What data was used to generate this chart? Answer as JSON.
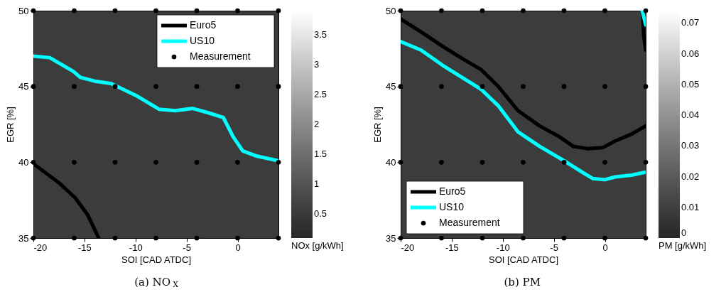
{
  "chart_data": [
    {
      "type": "line",
      "title": "(a) NO$_{X}$",
      "xlabel": "SOI [CAD ATDC]",
      "ylabel": "EGR [%]",
      "clabel": "NOx [g/kWh]",
      "xlim": [
        -20,
        4
      ],
      "ylim": [
        35,
        50
      ],
      "xticks": [
        -20,
        -15,
        -10,
        -5,
        0
      ],
      "yticks": [
        35,
        40,
        45,
        50
      ],
      "clim": [
        0.1,
        3.9
      ],
      "cticks": [
        0.5,
        1,
        1.5,
        2,
        2.5,
        3,
        3.5
      ],
      "legend": "top right",
      "grid": false,
      "series": [
        {
          "name": "Euro5",
          "type": "line",
          "color": "#000000",
          "x": [
            -20,
            -17.5,
            -15.9,
            -14.7,
            -13.6
          ],
          "values": [
            39.9,
            38.65,
            37.65,
            36.55,
            35.0
          ]
        },
        {
          "name": "US10",
          "type": "line",
          "color": "#00ffff",
          "x": [
            -20,
            -18.4,
            -16.1,
            -15.4,
            -14,
            -12.4,
            -9.8,
            -7.7,
            -6.1,
            -4.4,
            -2.8,
            -1.4,
            -0.45,
            0.5,
            1.9,
            4
          ],
          "values": [
            47.0,
            46.9,
            46.0,
            45.6,
            45.35,
            45.2,
            44.35,
            43.5,
            43.4,
            43.55,
            43.25,
            42.95,
            41.7,
            40.75,
            40.4,
            40.1
          ]
        },
        {
          "name": "Measurement",
          "type": "scatter",
          "color": "#000000",
          "marker": "circle",
          "x": [
            -20,
            -16,
            -12,
            -8,
            -4,
            0,
            4,
            -20,
            -16,
            -12,
            -8,
            -4,
            0,
            4,
            -20,
            -16,
            -12,
            -8,
            -4,
            0,
            4,
            -20,
            -16,
            -12,
            -8,
            -4,
            0,
            4
          ],
          "values": [
            50,
            50,
            50,
            50,
            50,
            50,
            50,
            45,
            45,
            45,
            45,
            45,
            45,
            45,
            40,
            40,
            40,
            40,
            40,
            40,
            40,
            35,
            35,
            35,
            35,
            35,
            35,
            35
          ]
        }
      ]
    },
    {
      "type": "line",
      "title": "(b) PM",
      "xlabel": "SOI [CAD ATDC]",
      "ylabel": "EGR [%]",
      "clabel": "PM [g/kWh]",
      "xlim": [
        -20,
        4
      ],
      "ylim": [
        35,
        50
      ],
      "xticks": [
        -20,
        -15,
        -10,
        -5,
        0
      ],
      "yticks": [
        35,
        40,
        45,
        50
      ],
      "clim": [
        0,
        0.074
      ],
      "cticks": [
        0,
        0.01,
        0.02,
        0.03,
        0.04,
        0.05,
        0.06,
        0.07
      ],
      "legend": "bottom left",
      "grid": false,
      "series": [
        {
          "name": "Euro5",
          "type": "line",
          "color": "#000000",
          "x": [
            -20,
            -18,
            -15.9,
            -14,
            -12.1,
            -10.4,
            -8.5,
            -6.4,
            -4.5,
            -3.1,
            -1.7,
            -0.2,
            1,
            2.6,
            4,
            null,
            3.7,
            3.8,
            4.0
          ],
          "values": [
            49.45,
            48.6,
            47.65,
            46.85,
            46.1,
            44.97,
            43.4,
            42.4,
            41.7,
            41.05,
            40.9,
            40.97,
            41.4,
            41.85,
            42.4,
            null,
            50,
            48.4,
            47.4
          ]
        },
        {
          "name": "US10",
          "type": "line",
          "color": "#00ffff",
          "x": [
            -20,
            -18,
            -15.9,
            -14,
            -12.1,
            -10.4,
            -8.5,
            -6.4,
            -4,
            -2.1,
            -1.2,
            0,
            1,
            2.6,
            4,
            null,
            3.66,
            4
          ],
          "values": [
            47.96,
            47.4,
            46.4,
            45.6,
            44.8,
            43.7,
            42.0,
            41.05,
            40.1,
            39.3,
            38.93,
            38.85,
            39.03,
            39.15,
            39.35,
            null,
            50,
            49.06
          ]
        },
        {
          "name": "Measurement",
          "type": "scatter",
          "color": "#000000",
          "marker": "circle",
          "x": [
            -20,
            -16,
            -12,
            -8,
            -4,
            0,
            4,
            -20,
            -16,
            -12,
            -8,
            -4,
            0,
            4,
            -20,
            -16,
            -12,
            -8,
            -4,
            0,
            4,
            -20,
            -16,
            -12,
            -8,
            -4,
            0,
            4
          ],
          "values": [
            50,
            50,
            50,
            50,
            50,
            50,
            50,
            45,
            45,
            45,
            45,
            45,
            45,
            45,
            40,
            40,
            40,
            40,
            40,
            40,
            40,
            35,
            35,
            35,
            35,
            35,
            35,
            35
          ]
        }
      ]
    }
  ]
}
